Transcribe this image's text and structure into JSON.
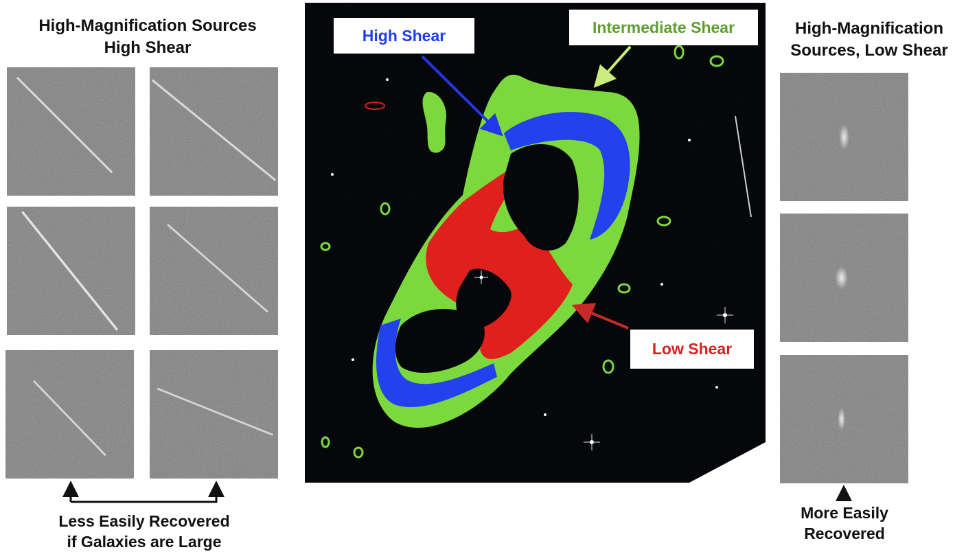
{
  "left_panel": {
    "title_line1": "High-Magnification Sources",
    "title_line2": "High Shear",
    "caption_line1": "Less Easily Recovered",
    "caption_line2": "if Galaxies are Large"
  },
  "right_panel": {
    "title_line1": "High-Magnification",
    "title_line2": "Sources, Low Shear",
    "caption_line1": "More Easily",
    "caption_line2": "Recovered"
  },
  "center_panel": {
    "labels": {
      "high_shear": "High Shear",
      "intermediate_shear": "Intermediate Shear",
      "low_shear": "Low Shear"
    }
  },
  "colors": {
    "high_shear": "#1f3df0",
    "intermediate_shear": "#7cd93d",
    "low_shear": "#e0201d",
    "intermediate_label_text": "#5f9e2e",
    "high_label_text": "#1f3df0",
    "low_label_text": "#d62020"
  }
}
